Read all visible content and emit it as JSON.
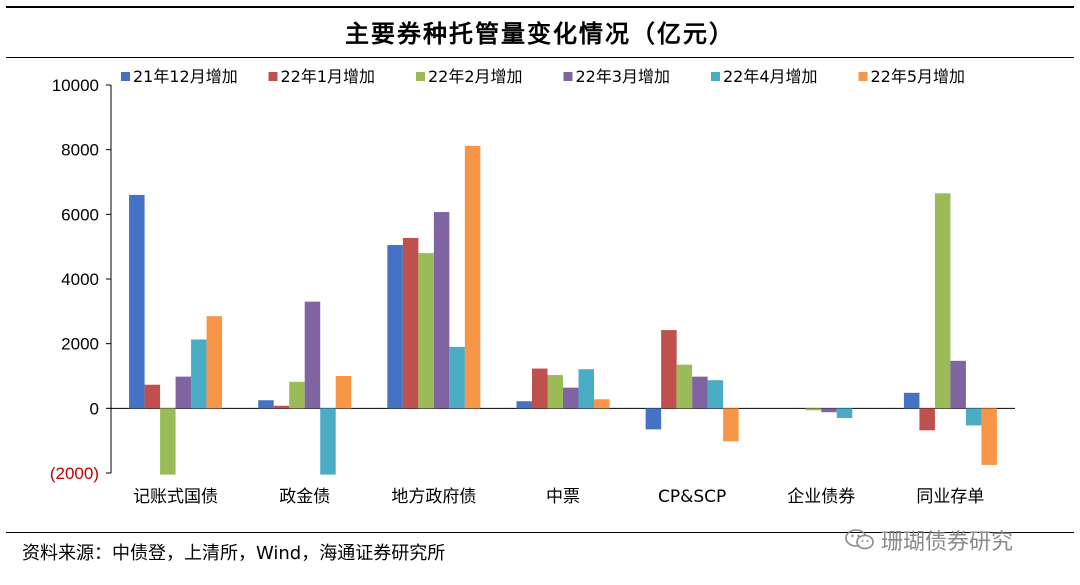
{
  "title": "主要券种托管量变化情况（亿元）",
  "source": "资料来源：中债登，上清所，Wind，海通证券研究所",
  "watermark": {
    "text": "珊瑚债券研究",
    "icon": "wechat-icon"
  },
  "chart_data": {
    "type": "bar",
    "categories": [
      "记账式国债",
      "政金债",
      "地方政府债",
      "中票",
      "CP&SCP",
      "企业债券",
      "同业存单"
    ],
    "series": [
      {
        "name": "21年12月增加",
        "color": "#4472C4",
        "values": [
          6600,
          250,
          5050,
          220,
          -650,
          0,
          480
        ]
      },
      {
        "name": "22年1月增加",
        "color": "#C0504D",
        "values": [
          730,
          80,
          5270,
          1230,
          2420,
          0,
          -680
        ]
      },
      {
        "name": "22年2月增加",
        "color": "#9BBB59",
        "values": [
          -2050,
          820,
          4800,
          1030,
          1350,
          -60,
          6650
        ]
      },
      {
        "name": "22年3月增加",
        "color": "#8064A2",
        "values": [
          980,
          3300,
          6070,
          640,
          980,
          -120,
          1470
        ]
      },
      {
        "name": "22年4月增加",
        "color": "#4BACC6",
        "values": [
          2130,
          -2050,
          1900,
          1210,
          870,
          -300,
          -530
        ]
      },
      {
        "name": "22年5月增加",
        "color": "#F79646",
        "values": [
          2850,
          1000,
          8120,
          280,
          -1020,
          0,
          -1750
        ]
      }
    ],
    "yticks": [
      {
        "value": 10000,
        "label": "10000"
      },
      {
        "value": 8000,
        "label": "8000"
      },
      {
        "value": 6000,
        "label": "6000"
      },
      {
        "value": 4000,
        "label": "4000"
      },
      {
        "value": 2000,
        "label": "2000"
      },
      {
        "value": 0,
        "label": "0"
      },
      {
        "value": -2000,
        "label": "(2000)"
      }
    ],
    "negative_label_color": "#C00000",
    "ylim": [
      -2000,
      10000
    ],
    "legend": "top",
    "grid": false
  }
}
